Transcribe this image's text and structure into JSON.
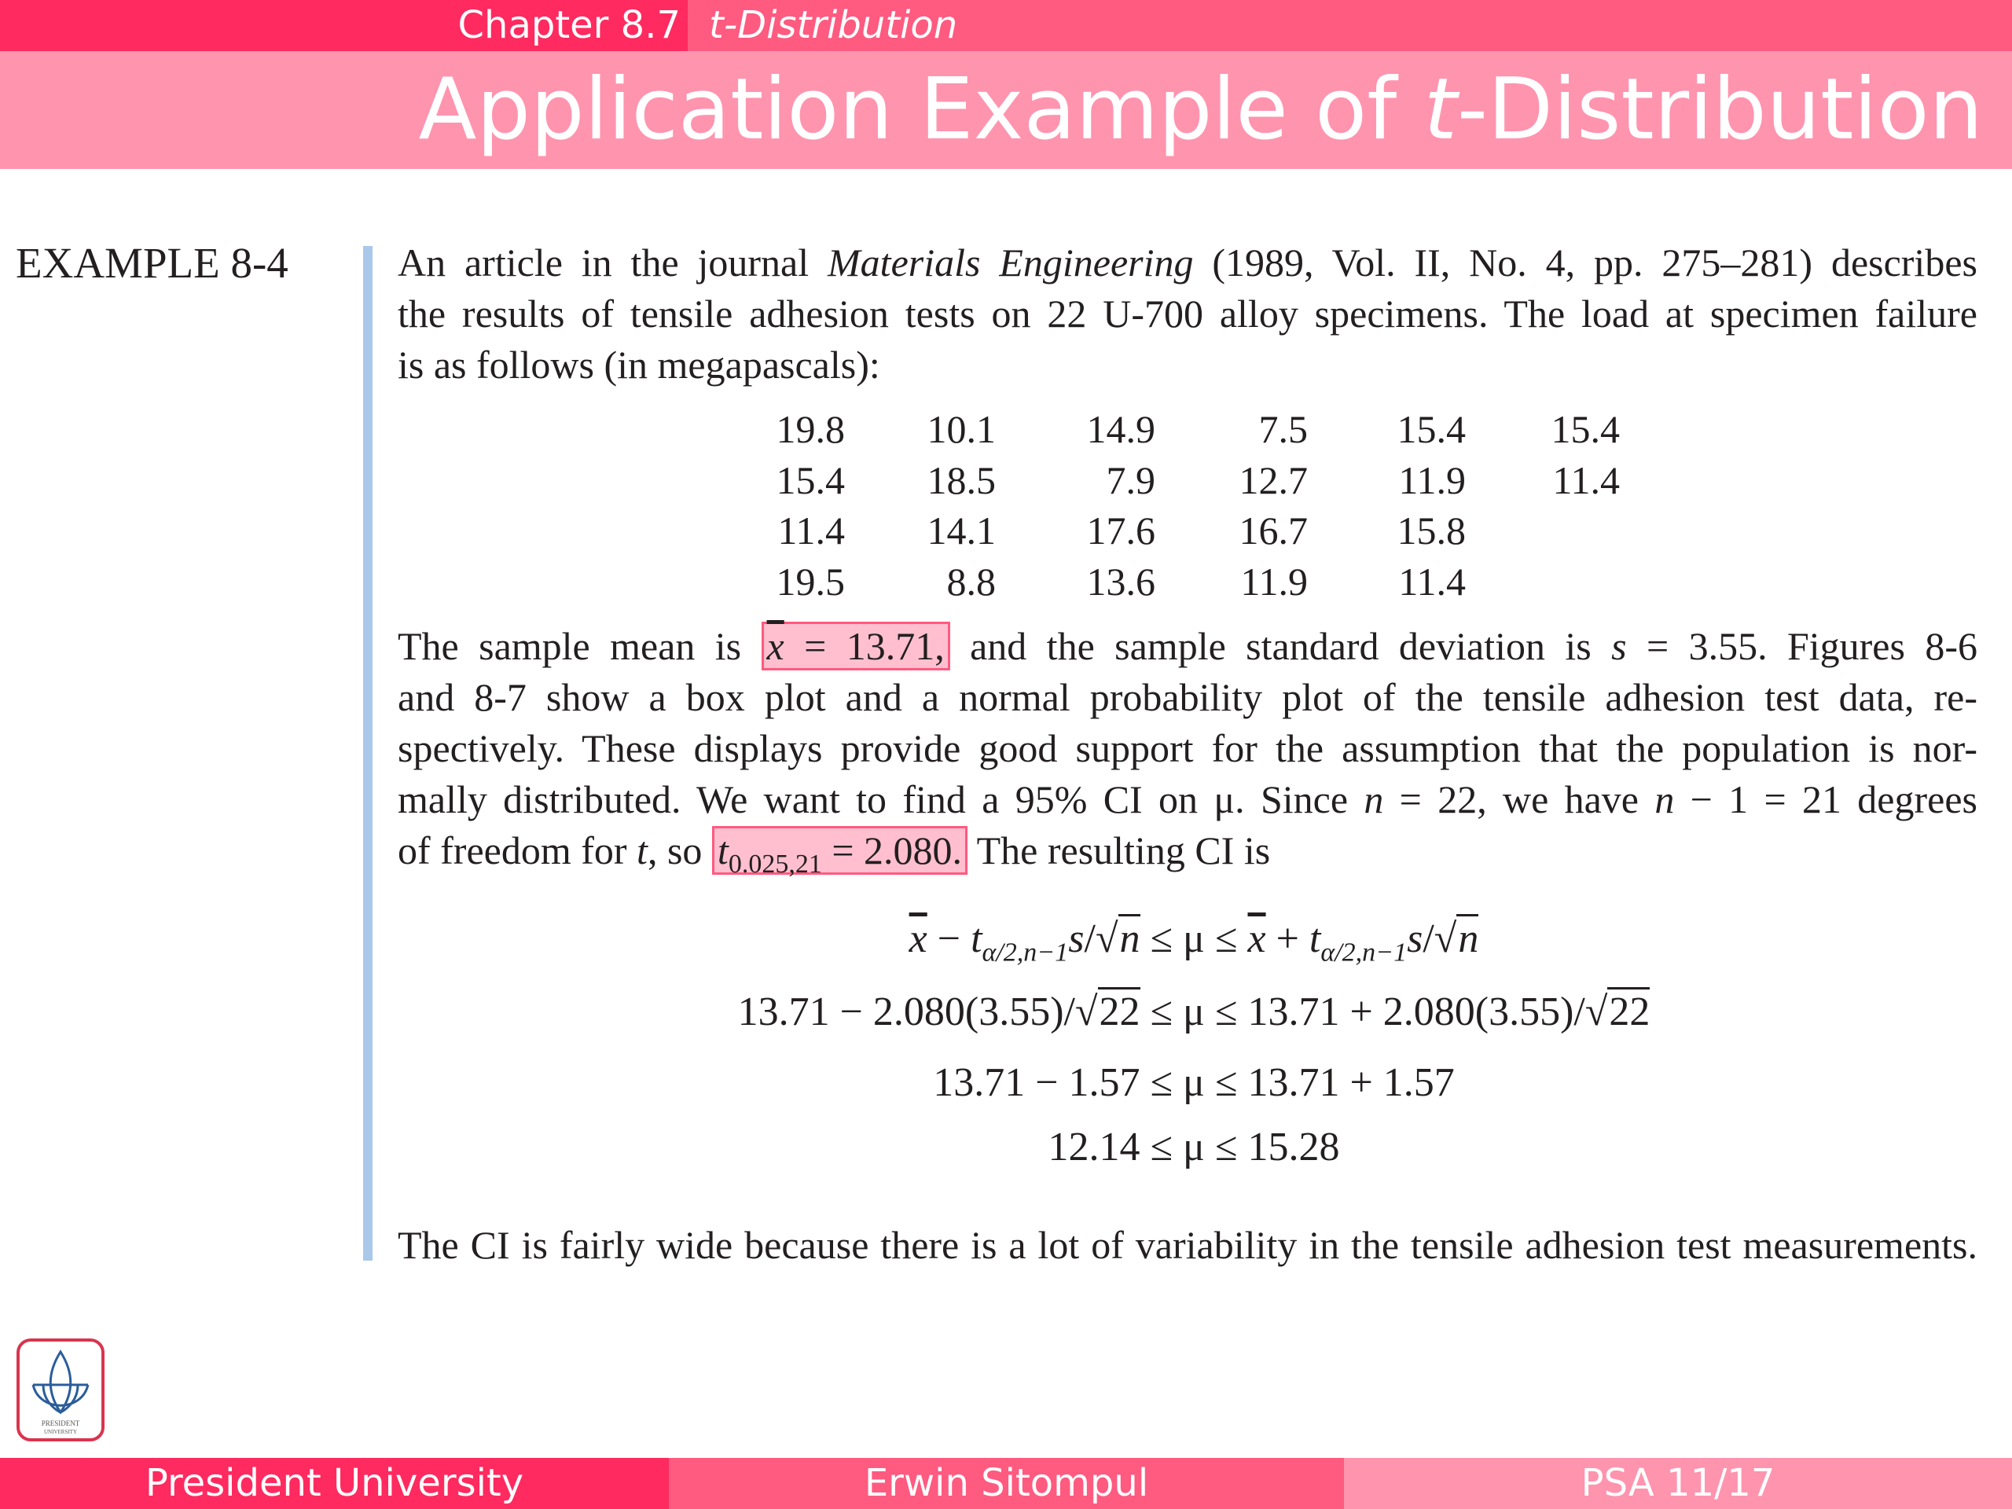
{
  "header": {
    "chapter": "Chapter 8.7",
    "section": "t-Distribution",
    "title_pre": "Application Example of ",
    "title_t": "t",
    "title_post": "-Distribution"
  },
  "example_label": "EXAMPLE 8-4",
  "intro": {
    "l1a": "An article in the journal ",
    "l1b": "Materials Engineering",
    "l1c": " (1989, Vol. II, No. 4, pp. 275–281) describes",
    "l2": "the results of tensile adhesion tests on 22 U-700 alloy specimens. The load at specimen failure",
    "l3": "is as follows (in megapascals):"
  },
  "data_table": [
    [
      "19.8",
      "10.1",
      "14.9",
      "7.5",
      "15.4",
      "15.4"
    ],
    [
      "15.4",
      "18.5",
      "7.9",
      "12.7",
      "11.9",
      "11.4"
    ],
    [
      "11.4",
      "14.1",
      "17.6",
      "16.7",
      "15.8",
      ""
    ],
    [
      "19.5",
      "8.8",
      "13.6",
      "11.9",
      "11.4",
      ""
    ]
  ],
  "body": {
    "l1a": "The sample mean is ",
    "h1x": "x",
    "h1b": " = 13.71,",
    "l1c": " and the sample standard deviation is ",
    "l1s": "s",
    "l1d": " = 3.55. Figures 8-6",
    "l2": "and 8-7 show a box plot and a normal probability plot of the tensile adhesion test data, re-",
    "l3": "spectively. These displays provide good support for the assumption that the population is nor-",
    "l4a": "mally distributed. We want to find a 95% CI on μ. Since ",
    "l4n": "n",
    "l4b": " = 22, we have ",
    "l4n2": "n",
    "l4c": " − 1 = 21 degrees",
    "l5a": "of freedom for ",
    "l5t": "t",
    "l5b": ", so ",
    "h2t": "t",
    "h2sub": "0.025,21",
    "h2b": " = 2.080.",
    "l5c": " The resulting CI is"
  },
  "equations": {
    "e1": {
      "x": "x",
      "m": " − ",
      "t": "t",
      "sub": "α/2,n−1",
      "s": "s",
      "sl": "/√",
      "n": "n",
      "mid": " ≤ μ ≤ ",
      "p": " + "
    },
    "e2a": "13.71 − 2.080(3.55)/√",
    "e2r": "22",
    "e2b": " ≤ μ ≤ 13.71 + 2.080(3.55)/√",
    "e3": "13.71 − 1.57 ≤ μ ≤ 13.71 + 1.57",
    "e4": "12.14 ≤ μ ≤ 15.28"
  },
  "conclusion": "The CI is fairly wide because there is a lot of variability in the tensile adhesion test measurements.",
  "logo_text": "PRESIDENT UNIVERSITY",
  "footer": {
    "left": "President University",
    "center": "Erwin Sitompul",
    "right": "PSA 11/17"
  },
  "colors": {
    "dark": "#ff2a5f",
    "mid": "#ff5a80",
    "light": "#ff94ae",
    "highlight": "#ffbfcf",
    "bar": "#a9c8ea"
  }
}
